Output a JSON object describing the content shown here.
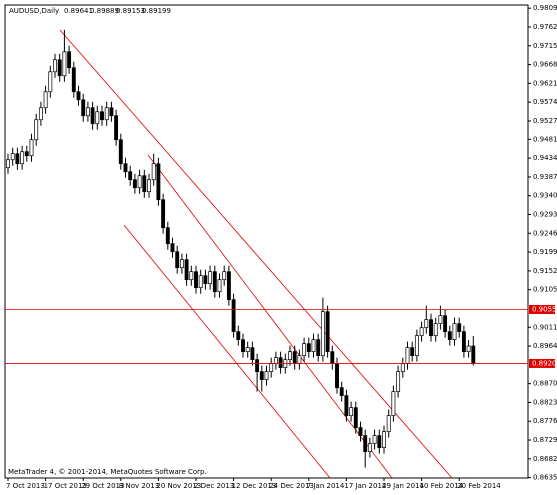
{
  "chart_data": {
    "type": "candlestick",
    "title": "AUDUSD,Daily",
    "footer": "MetaTrader 4, © 2001-2014, MetaQuotes Software Corp.",
    "categories": [
      "7 Oct 2013",
      null,
      null,
      null,
      null,
      null,
      null,
      null,
      "17 Oct 2013",
      null,
      null,
      null,
      null,
      null,
      null,
      null,
      "29 Oct 2013",
      null,
      null,
      null,
      null,
      null,
      null,
      null,
      "8 Nov 2013",
      null,
      null,
      null,
      null,
      null,
      null,
      null,
      "20 Nov 2013",
      null,
      null,
      null,
      null,
      null,
      null,
      null,
      "2 Dec 2013",
      null,
      null,
      null,
      null,
      null,
      null,
      null,
      "12 Dec 2013",
      null,
      null,
      null,
      null,
      null,
      null,
      null,
      "24 Dec 2013",
      null,
      null,
      null,
      null,
      null,
      null,
      null,
      "7 Jan 2014",
      null,
      null,
      null,
      null,
      null,
      null,
      null,
      "17 Jan 2014",
      null,
      null,
      null,
      null,
      null,
      null,
      null,
      "29 Jan 2014",
      null,
      null,
      null,
      null,
      null,
      null,
      null,
      "10 Feb 2014",
      null,
      null,
      null,
      null,
      null,
      null,
      null,
      "20 Feb 2014",
      null,
      null,
      null
    ],
    "open": [
      0.941,
      0.943,
      0.9445,
      0.942,
      0.945,
      0.944,
      0.948,
      0.953,
      0.956,
      0.96,
      0.965,
      0.968,
      0.964,
      0.97,
      0.966,
      0.96,
      0.958,
      0.954,
      0.956,
      0.952,
      0.955,
      0.953,
      0.956,
      0.954,
      0.948,
      0.942,
      0.94,
      0.938,
      0.936,
      0.939,
      0.935,
      0.938,
      0.942,
      0.933,
      0.926,
      0.922,
      0.92,
      0.916,
      0.918,
      0.913,
      0.915,
      0.911,
      0.914,
      0.912,
      0.915,
      0.91,
      0.913,
      0.915,
      0.908,
      0.9,
      0.898,
      0.895,
      0.896,
      0.893,
      0.89,
      0.888,
      0.89,
      0.892,
      0.8935,
      0.891,
      0.893,
      0.895,
      0.892,
      0.894,
      0.897,
      0.895,
      0.898,
      0.894,
      0.905,
      0.895,
      0.892,
      0.886,
      0.884,
      0.879,
      0.881,
      0.876,
      0.874,
      0.87,
      0.872,
      0.874,
      0.871,
      0.875,
      0.879,
      0.885,
      0.89,
      0.892,
      0.896,
      0.894,
      0.899,
      0.901,
      0.903,
      0.899,
      0.902,
      0.904,
      0.9,
      0.898,
      0.902,
      0.9,
      0.895,
      0.89641
    ],
    "high": [
      0.9445,
      0.946,
      0.946,
      0.9465,
      0.9465,
      0.9495,
      0.9545,
      0.9575,
      0.9615,
      0.9665,
      0.9695,
      0.9695,
      0.9755,
      0.9715,
      0.9675,
      0.9615,
      0.9595,
      0.9575,
      0.9575,
      0.9565,
      0.9565,
      0.9575,
      0.9575,
      0.9555,
      0.9495,
      0.9435,
      0.9415,
      0.9395,
      0.9405,
      0.9405,
      0.9395,
      0.9445,
      0.9435,
      0.9345,
      0.9275,
      0.9235,
      0.9215,
      0.9195,
      0.9195,
      0.9165,
      0.9165,
      0.9155,
      0.9155,
      0.9165,
      0.9165,
      0.9145,
      0.9165,
      0.9165,
      0.9095,
      0.9015,
      0.8995,
      0.8975,
      0.8975,
      0.8945,
      0.8915,
      0.8915,
      0.8935,
      0.895,
      0.895,
      0.8945,
      0.8965,
      0.8965,
      0.8955,
      0.8985,
      0.8985,
      0.8995,
      0.8995,
      0.9085,
      0.9065,
      0.8965,
      0.8935,
      0.8875,
      0.8855,
      0.8825,
      0.8825,
      0.8775,
      0.8755,
      0.8735,
      0.8755,
      0.8755,
      0.8765,
      0.8805,
      0.8865,
      0.8915,
      0.8935,
      0.8975,
      0.8975,
      0.9005,
      0.9025,
      0.9065,
      0.9045,
      0.9035,
      0.9065,
      0.9055,
      0.9015,
      0.9035,
      0.9035,
      0.9015,
      0.8979,
      0.89889
    ],
    "low": [
      0.9395,
      0.9415,
      0.9405,
      0.9405,
      0.9425,
      0.9425,
      0.9465,
      0.9515,
      0.9545,
      0.9585,
      0.9635,
      0.9625,
      0.9625,
      0.9645,
      0.9585,
      0.9565,
      0.9525,
      0.9525,
      0.9505,
      0.9505,
      0.9515,
      0.9515,
      0.9525,
      0.9465,
      0.9405,
      0.9385,
      0.9365,
      0.9345,
      0.9345,
      0.9335,
      0.9335,
      0.9365,
      0.9315,
      0.9245,
      0.9205,
      0.9185,
      0.9145,
      0.9145,
      0.9115,
      0.9115,
      0.9095,
      0.9095,
      0.9105,
      0.9105,
      0.9085,
      0.9085,
      0.9115,
      0.9065,
      0.8985,
      0.8965,
      0.8935,
      0.8935,
      0.8915,
      0.885,
      0.885,
      0.8865,
      0.8885,
      0.8905,
      0.8895,
      0.8895,
      0.8915,
      0.8905,
      0.8905,
      0.8925,
      0.8935,
      0.8935,
      0.8925,
      0.8925,
      0.8935,
      0.8905,
      0.8845,
      0.8825,
      0.8775,
      0.8775,
      0.8745,
      0.8725,
      0.866,
      0.8685,
      0.8705,
      0.8695,
      0.8695,
      0.8735,
      0.8775,
      0.8835,
      0.8885,
      0.8905,
      0.8925,
      0.8925,
      0.8975,
      0.8995,
      0.8975,
      0.8975,
      0.9005,
      0.8985,
      0.8965,
      0.8965,
      0.8985,
      0.8935,
      0.8935,
      0.89153
    ],
    "close": [
      0.943,
      0.9445,
      0.942,
      0.945,
      0.944,
      0.948,
      0.953,
      0.956,
      0.96,
      0.965,
      0.968,
      0.964,
      0.97,
      0.966,
      0.96,
      0.958,
      0.954,
      0.956,
      0.952,
      0.955,
      0.953,
      0.956,
      0.954,
      0.948,
      0.942,
      0.94,
      0.938,
      0.936,
      0.939,
      0.935,
      0.938,
      0.942,
      0.933,
      0.926,
      0.922,
      0.92,
      0.916,
      0.918,
      0.913,
      0.915,
      0.911,
      0.914,
      0.912,
      0.915,
      0.91,
      0.913,
      0.915,
      0.908,
      0.9,
      0.898,
      0.895,
      0.896,
      0.893,
      0.89,
      0.888,
      0.89,
      0.892,
      0.8935,
      0.891,
      0.893,
      0.895,
      0.892,
      0.894,
      0.897,
      0.895,
      0.898,
      0.894,
      0.905,
      0.895,
      0.892,
      0.886,
      0.884,
      0.879,
      0.881,
      0.876,
      0.874,
      0.87,
      0.872,
      0.874,
      0.871,
      0.875,
      0.879,
      0.885,
      0.89,
      0.892,
      0.896,
      0.894,
      0.899,
      0.901,
      0.903,
      0.899,
      0.902,
      0.904,
      0.9,
      0.898,
      0.902,
      0.9,
      0.895,
      0.8964,
      0.89199
    ],
    "ylim": [
      0.8634,
      0.9817
    ],
    "yticks": [
      {
        "value": 0.9809,
        "label": "0.98090"
      },
      {
        "value": 0.9762,
        "label": "0.97620"
      },
      {
        "value": 0.9715,
        "label": "0.97150"
      },
      {
        "value": 0.9668,
        "label": "0.96680"
      },
      {
        "value": 0.9621,
        "label": "0.96210"
      },
      {
        "value": 0.9574,
        "label": "0.95740"
      },
      {
        "value": 0.9527,
        "label": "0.95270"
      },
      {
        "value": 0.9481,
        "label": "0.94810"
      },
      {
        "value": 0.9434,
        "label": "0.94340"
      },
      {
        "value": 0.9387,
        "label": "0.93870"
      },
      {
        "value": 0.934,
        "label": "0.93400"
      },
      {
        "value": 0.9293,
        "label": "0.92930"
      },
      {
        "value": 0.9246,
        "label": "0.92460"
      },
      {
        "value": 0.9199,
        "label": "0.91990"
      },
      {
        "value": 0.9152,
        "label": "0.91520"
      },
      {
        "value": 0.9105,
        "label": "0.91050"
      },
      {
        "value": 0.9011,
        "label": "0.90110"
      },
      {
        "value": 0.8964,
        "label": "0.89640"
      },
      {
        "value": 0.887,
        "label": "0.88700"
      },
      {
        "value": 0.8823,
        "label": "0.88230"
      },
      {
        "value": 0.8776,
        "label": "0.87760"
      },
      {
        "value": 0.8729,
        "label": "0.87290"
      },
      {
        "value": 0.8682,
        "label": "0.86820"
      },
      {
        "value": 0.8635,
        "label": "0.86350"
      }
    ],
    "hlines": [
      {
        "value": 0.90555,
        "color": "#e00000"
      },
      {
        "value": 0.89205,
        "color": "#e00000"
      }
    ]
  }
}
